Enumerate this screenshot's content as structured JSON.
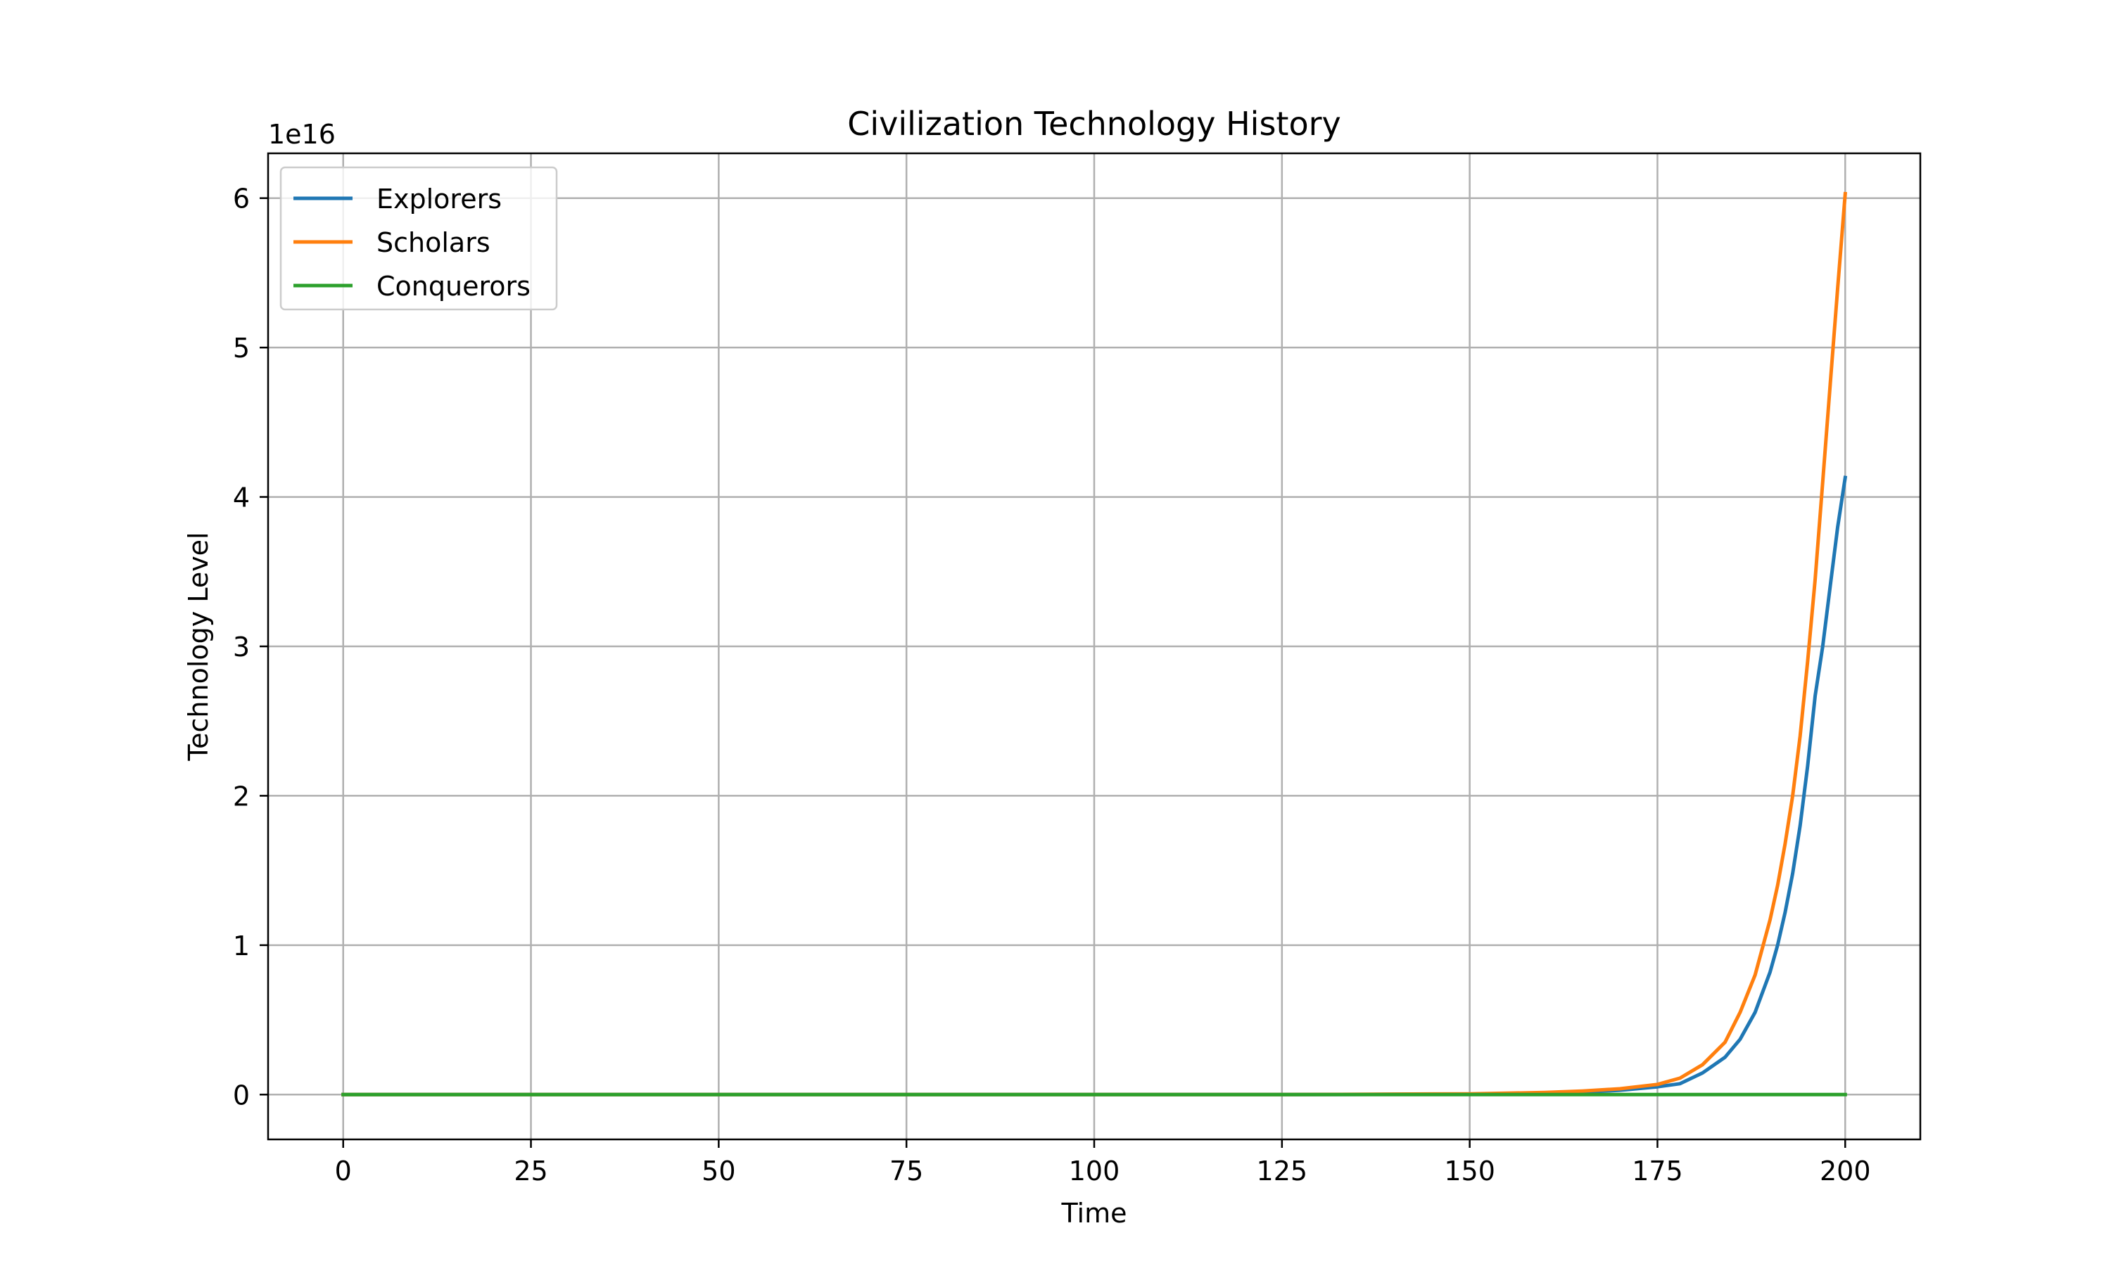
{
  "chart_data": {
    "type": "line",
    "title": "Civilization Technology History",
    "xlabel": "Time",
    "ylabel": "Technology Level",
    "y_offset_label": "1e16",
    "y_scale": 1e+16,
    "xlim": [
      -10,
      210
    ],
    "ylim": [
      -3000000000000000.0,
      6.3e+16
    ],
    "xticks": [
      0,
      25,
      50,
      75,
      100,
      125,
      150,
      175,
      200
    ],
    "xtick_labels": [
      "0",
      "25",
      "50",
      "75",
      "100",
      "125",
      "150",
      "175",
      "200"
    ],
    "yticks": [
      0,
      1e+16,
      2e+16,
      3e+16,
      4e+16,
      5e+16,
      6e+16
    ],
    "ytick_labels": [
      "0",
      "1",
      "2",
      "3",
      "4",
      "5",
      "6"
    ],
    "grid": true,
    "legend_position": "upper-left",
    "x": [
      0,
      25,
      50,
      75,
      100,
      125,
      150,
      160,
      165,
      170,
      175,
      178,
      181,
      184,
      186,
      188,
      190,
      191,
      192,
      193,
      194,
      195,
      196,
      197,
      198,
      199,
      200
    ],
    "series": [
      {
        "name": "Explorers",
        "color": "#1f77b4",
        "values": [
          0,
          0,
          0,
          0,
          0,
          0,
          30000000000000.0,
          90000000000000.0,
          160000000000000.0,
          290000000000000.0,
          520000000000000.0,
          730000000000000.0,
          1450000000000000.0,
          2500000000000000.0,
          3700000000000000.0,
          5500000000000000.0,
          8200000000000000.0,
          1e+16,
          1.22e+16,
          1.48e+16,
          1.8e+16,
          2.2e+16,
          2.67e+16,
          3e+16,
          3.4e+16,
          3.8e+16,
          4.13e+16
        ]
      },
      {
        "name": "Scholars",
        "color": "#ff7f0e",
        "values": [
          0,
          0,
          0,
          0,
          0,
          0,
          50000000000000.0,
          140000000000000.0,
          240000000000000.0,
          390000000000000.0,
          680000000000000.0,
          1100000000000000.0,
          2000000000000000.0,
          3500000000000000.0,
          5500000000000000.0,
          8000000000000000.0,
          1.17e+16,
          1.4e+16,
          1.68e+16,
          2e+16,
          2.4e+16,
          2.9e+16,
          3.45e+16,
          4.1e+16,
          4.75e+16,
          5.4e+16,
          6.03e+16
        ]
      },
      {
        "name": "Conquerors",
        "color": "#2ca02c",
        "values": [
          0,
          0,
          0,
          0,
          0,
          0,
          0,
          0,
          0,
          0,
          0,
          0,
          0,
          0,
          0,
          0,
          0,
          0,
          0,
          0,
          0,
          0,
          0,
          0,
          0,
          0,
          0
        ]
      }
    ]
  }
}
